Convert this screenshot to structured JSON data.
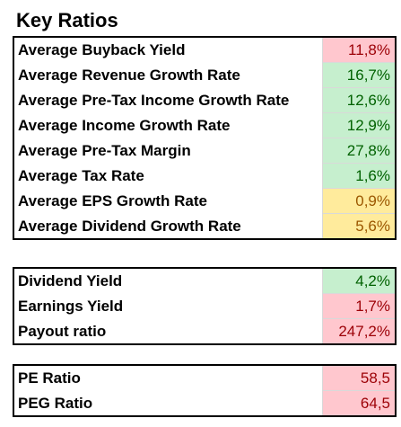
{
  "title": "Key Ratios",
  "colors": {
    "bad_bg": "#ffc7ce",
    "bad_text": "#9c0006",
    "good_bg": "#c6efce",
    "good_text": "#006100",
    "neutral_bg": "#ffeb9c",
    "neutral_text": "#9c5700"
  },
  "groups": [
    {
      "rows": [
        {
          "label": "Average Buyback Yield",
          "value": "11,8%",
          "status": "bad"
        },
        {
          "label": "Average Revenue Growth Rate",
          "value": "16,7%",
          "status": "good"
        },
        {
          "label": "Average Pre-Tax Income Growth Rate",
          "value": "12,6%",
          "status": "good"
        },
        {
          "label": "Average Income Growth Rate",
          "value": "12,9%",
          "status": "good"
        },
        {
          "label": "Average Pre-Tax Margin",
          "value": "27,8%",
          "status": "good"
        },
        {
          "label": "Average Tax Rate",
          "value": "1,6%",
          "status": "good"
        },
        {
          "label": "Average EPS Growth Rate",
          "value": "0,9%",
          "status": "neutral"
        },
        {
          "label": "Average Dividend Growth Rate",
          "value": "5,6%",
          "status": "neutral"
        }
      ]
    },
    {
      "rows": [
        {
          "label": "Dividend Yield",
          "value": "4,2%",
          "status": "good"
        },
        {
          "label": "Earnings Yield",
          "value": "1,7%",
          "status": "bad"
        },
        {
          "label": "Payout ratio",
          "value": "247,2%",
          "status": "bad"
        }
      ]
    },
    {
      "rows": [
        {
          "label": "PE Ratio",
          "value": "58,5",
          "status": "bad"
        },
        {
          "label": "PEG Ratio",
          "value": "64,5",
          "status": "bad"
        }
      ]
    }
  ]
}
